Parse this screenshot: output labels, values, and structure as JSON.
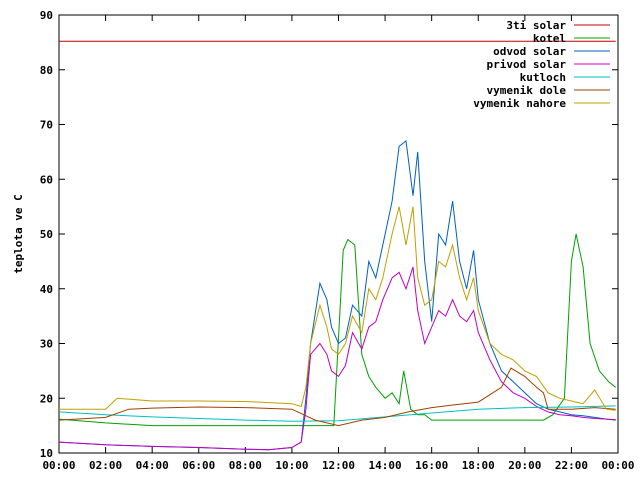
{
  "chart_data": {
    "type": "line",
    "title": "",
    "xlabel": "",
    "ylabel": "teplota ve C",
    "xlim": [
      0,
      24
    ],
    "ylim": [
      10,
      90
    ],
    "x_ticks": [
      "00:00",
      "02:00",
      "04:00",
      "06:00",
      "08:00",
      "10:00",
      "12:00",
      "14:00",
      "16:00",
      "18:00",
      "20:00",
      "22:00",
      "00:00"
    ],
    "y_ticks": [
      10,
      20,
      30,
      40,
      50,
      60,
      70,
      80,
      90
    ],
    "grid": false,
    "legend_position": "top-right",
    "series": [
      {
        "name": "3ti solar",
        "color": "#c00000",
        "x": [
          0,
          23.9
        ],
        "y": [
          85.2,
          85.2
        ]
      },
      {
        "name": "kotel",
        "color": "#00a000",
        "x": [
          0,
          2,
          4,
          6,
          8,
          10,
          11,
          11.8,
          12.2,
          12.4,
          12.7,
          13.0,
          13.3,
          13.6,
          14.0,
          14.3,
          14.6,
          14.8,
          15.1,
          15.4,
          15.7,
          16.0,
          16.5,
          17,
          18,
          19,
          20,
          20.8,
          21.2,
          21.7,
          22.0,
          22.2,
          22.5,
          22.8,
          23.2,
          23.6,
          23.9
        ],
        "y": [
          16.2,
          15.5,
          15,
          15,
          15,
          15,
          15,
          15,
          47,
          49,
          48,
          28,
          24,
          22,
          20,
          21,
          19,
          25,
          18,
          17,
          17,
          16,
          16,
          16,
          16,
          16,
          16,
          16,
          17,
          20,
          45,
          50,
          44,
          30,
          25,
          23,
          22
        ]
      },
      {
        "name": "odvod solar",
        "color": "#0060c0",
        "x": [
          0,
          2,
          4,
          6,
          8,
          9,
          10,
          10.4,
          10.6,
          10.8,
          11.2,
          11.5,
          11.7,
          12.0,
          12.3,
          12.6,
          13.0,
          13.3,
          13.6,
          13.9,
          14.3,
          14.6,
          14.9,
          15.2,
          15.4,
          15.7,
          16.0,
          16.3,
          16.6,
          16.9,
          17.2,
          17.5,
          17.8,
          18.0,
          18.5,
          19,
          19.5,
          20,
          20.5,
          21,
          21.5,
          22,
          22.5,
          23,
          23.5,
          23.9
        ],
        "y": [
          12,
          11.5,
          11.2,
          11,
          10.7,
          10.6,
          11,
          12,
          20,
          30,
          41,
          38,
          33,
          30,
          31,
          37,
          35,
          45,
          42,
          48,
          56,
          66,
          67,
          57,
          65,
          45,
          34,
          50,
          48,
          56,
          45,
          40,
          47,
          38,
          30,
          25,
          23,
          21,
          19,
          18,
          17.5,
          17,
          16.8,
          16.5,
          16.2,
          16
        ]
      },
      {
        "name": "privod solar",
        "color": "#c000c0",
        "x": [
          0,
          2,
          4,
          6,
          8,
          9,
          10,
          10.4,
          10.6,
          10.8,
          11.2,
          11.5,
          11.7,
          12.0,
          12.3,
          12.6,
          13.0,
          13.3,
          13.6,
          13.9,
          14.3,
          14.6,
          14.9,
          15.2,
          15.4,
          15.7,
          16.0,
          16.3,
          16.6,
          16.9,
          17.2,
          17.5,
          17.8,
          18.0,
          18.5,
          19,
          19.5,
          20,
          20.5,
          21,
          21.5,
          22,
          22.5,
          23,
          23.5,
          23.9
        ],
        "y": [
          12,
          11.5,
          11.2,
          11,
          10.7,
          10.6,
          11,
          12,
          18,
          28,
          30,
          28,
          25,
          24,
          26,
          32,
          29,
          33,
          34,
          38,
          42,
          43,
          40,
          44,
          36,
          30,
          33,
          36,
          35,
          38,
          35,
          34,
          36,
          32,
          27,
          23,
          21,
          20,
          18.5,
          17.5,
          17,
          16.8,
          16.5,
          16.3,
          16.2,
          16.1
        ]
      },
      {
        "name": "kutloch",
        "color": "#00c0c0",
        "x": [
          0,
          2,
          4,
          6,
          8,
          10,
          12,
          14,
          16,
          18,
          20,
          22,
          23.9
        ],
        "y": [
          17.5,
          17,
          16.6,
          16.3,
          16.0,
          15.8,
          15.9,
          16.6,
          17.3,
          18.0,
          18.3,
          18.4,
          18.6
        ]
      },
      {
        "name": "vymenik dole",
        "color": "#a04000",
        "x": [
          0,
          2,
          3,
          4,
          6,
          8,
          10,
          11,
          12,
          13,
          14,
          15,
          16,
          17,
          18,
          19,
          19.4,
          20,
          20.5,
          20.8,
          21,
          22,
          23,
          23.9
        ],
        "y": [
          16,
          16.5,
          18,
          18.2,
          18.4,
          18.3,
          18,
          16,
          15,
          16,
          16.5,
          17.5,
          18.3,
          18.8,
          19.3,
          22,
          25.5,
          24,
          22,
          21,
          18,
          18,
          18.3,
          18
        ]
      },
      {
        "name": "vymenik nahore",
        "color": "#c0a000",
        "x": [
          0,
          2,
          2.5,
          4,
          6,
          8,
          10,
          10.4,
          10.6,
          10.8,
          11.2,
          11.5,
          11.7,
          12.0,
          12.3,
          12.6,
          13.0,
          13.3,
          13.6,
          13.9,
          14.3,
          14.6,
          14.9,
          15.2,
          15.4,
          15.7,
          16.0,
          16.3,
          16.6,
          16.9,
          17.2,
          17.5,
          17.8,
          18.0,
          18.5,
          19,
          19.5,
          20,
          20.5,
          21,
          21.5,
          22,
          22.5,
          23,
          23.5,
          23.9
        ],
        "y": [
          18,
          18,
          20,
          19.5,
          19.5,
          19.4,
          19,
          18.5,
          22,
          30,
          37,
          33,
          29,
          28,
          30,
          35,
          32,
          40,
          38,
          42,
          50,
          55,
          48,
          55,
          42,
          37,
          38,
          45,
          44,
          48,
          42,
          38,
          42,
          36,
          30,
          28,
          27,
          25,
          24,
          21,
          20,
          19.5,
          19,
          21.5,
          18,
          17.8
        ]
      }
    ]
  }
}
